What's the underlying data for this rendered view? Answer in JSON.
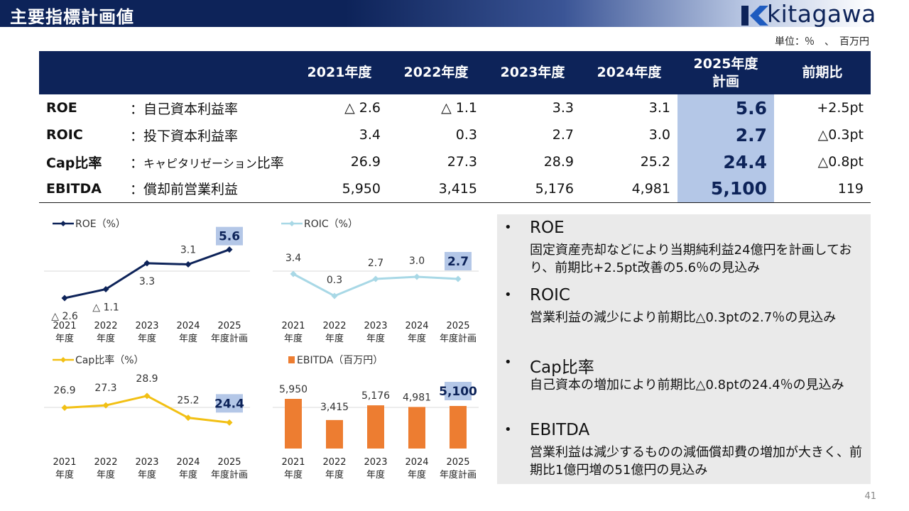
{
  "title": "主要指標計画値",
  "logo": {
    "text": "kitagawa",
    "color": "#0d2359",
    "accent": "#1e5bbf"
  },
  "unit_note": "単位：％　、　百万円",
  "table": {
    "headers": [
      "",
      "",
      "2021年度",
      "2022年度",
      "2023年度",
      "2024年度",
      "2025年度\n計画",
      "前期比"
    ],
    "rows": [
      {
        "metric": "ROE",
        "desc": "：自己資本利益率",
        "values": [
          "△ 2.6",
          "△ 1.1",
          "3.3",
          "3.1"
        ],
        "plan": "5.6",
        "diff": "+2.5pt"
      },
      {
        "metric": "ROIC",
        "desc": "：投下資本利益率",
        "values": [
          "3.4",
          "0.3",
          "2.7",
          "3.0"
        ],
        "plan": "2.7",
        "diff": "△0.3pt"
      },
      {
        "metric": "Cap比率",
        "desc_prefix": "：",
        "desc_small": "キャピタリゼーション",
        "desc_suffix": "比率",
        "values": [
          "26.9",
          "27.3",
          "28.9",
          "25.2"
        ],
        "plan": "24.4",
        "diff": "△0.8pt"
      },
      {
        "metric": "EBITDA",
        "desc": "：償却前営業利益",
        "values": [
          "5,950",
          "3,415",
          "5,176",
          "4,981"
        ],
        "plan": "5,100",
        "diff": "119"
      }
    ],
    "header_color": "#0d2359",
    "plan_color": "#b4c7e7"
  },
  "chart_data": [
    {
      "type": "line",
      "legend": "ROE（%）",
      "categories": [
        "2021\n年度",
        "2022\n年度",
        "2023\n年度",
        "2024\n年度",
        "2025\n年度計画"
      ],
      "values": [
        -2.6,
        -1.1,
        3.3,
        3.1,
        5.6
      ],
      "labels": [
        "△ 2.6",
        "△ 1.1",
        "3.3",
        "3.1",
        "5.6"
      ],
      "color": "#0d2359",
      "highlight_color": "#b4c7e7",
      "ylim": [
        -5,
        7
      ]
    },
    {
      "type": "line",
      "legend": "ROIC（%）",
      "categories": [
        "2021\n年度",
        "2022\n年度",
        "2023\n年度",
        "2024\n年度",
        "2025\n年度計画"
      ],
      "values": [
        3.4,
        0.3,
        2.7,
        3.0,
        2.7
      ],
      "labels": [
        "3.4",
        "0.3",
        "2.7",
        "3.0",
        "2.7"
      ],
      "color": "#a8d8e6",
      "highlight_color": "#b4c7e7",
      "ylim": [
        -2,
        8
      ]
    },
    {
      "type": "line",
      "legend": "Cap比率（%）",
      "categories": [
        "2021\n年度",
        "2022\n年度",
        "2023\n年度",
        "2024\n年度",
        "2025\n年度計画"
      ],
      "values": [
        26.9,
        27.3,
        28.9,
        25.2,
        24.4
      ],
      "labels": [
        "26.9",
        "27.3",
        "28.9",
        "25.2",
        "24.4"
      ],
      "color": "#f2c014",
      "highlight_color": "#b4c7e7",
      "ylim": [
        20,
        32
      ]
    },
    {
      "type": "bar",
      "legend": "EBITDA（百万円）",
      "categories": [
        "2021\n年度",
        "2022\n年度",
        "2023\n年度",
        "2024\n年度",
        "2025\n年度計画"
      ],
      "values": [
        5950,
        3415,
        5176,
        4981,
        5100
      ],
      "labels": [
        "5,950",
        "3,415",
        "5,176",
        "4,981",
        "5,100"
      ],
      "color": "#ed7d31",
      "highlight_color": "#b4c7e7",
      "ylim": [
        0,
        8500
      ]
    }
  ],
  "summary": [
    {
      "head": "ROE",
      "body": "固定資産売却などにより当期純利益24億円を計画しており、前期比+2.5pt改善の5.6％の見込み"
    },
    {
      "head": "ROIC",
      "body": "営業利益の減少により前期比△0.3ptの2.7％の見込み"
    },
    {
      "head": "Cap比率",
      "body": "自己資本の増加により前期比△0.8ptの24.4％の見込み"
    },
    {
      "head": "EBITDA",
      "body": "営業利益は減少するものの減価償却費の増加が大きく、前期比1億円増の51億円の見込み"
    }
  ],
  "page_number": "41"
}
